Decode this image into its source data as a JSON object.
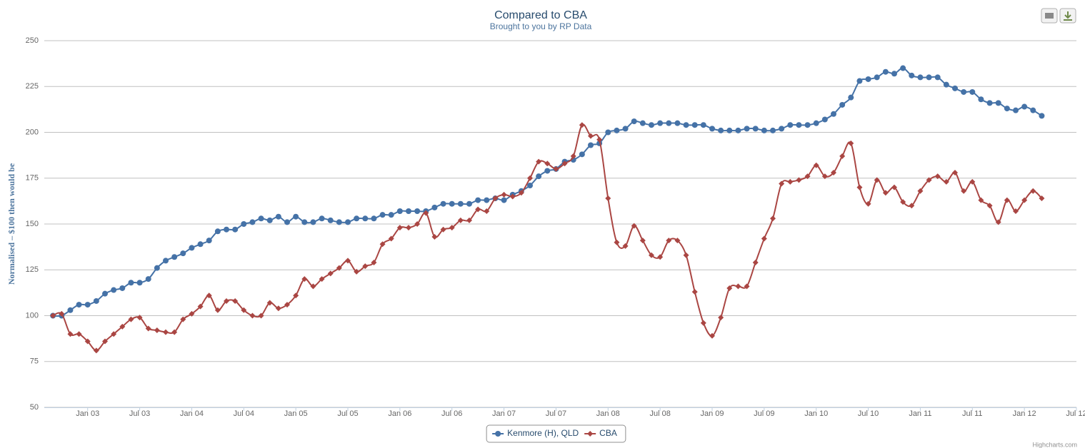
{
  "chart_data": {
    "type": "line",
    "title": "Compared to CBA",
    "subtitle": "Brought to you by RP Data",
    "y_label": "Normalised – $100 then would be",
    "credits": "Highcharts.com",
    "grid": true,
    "legend": "bottom",
    "xlim": [
      "2002-08",
      "2012-07"
    ],
    "xticks": [
      {
        "value": "2003-01",
        "label": "Jan 03"
      },
      {
        "value": "2003-07",
        "label": "Jul 03"
      },
      {
        "value": "2004-01",
        "label": "Jan 04"
      },
      {
        "value": "2004-07",
        "label": "Jul 04"
      },
      {
        "value": "2005-01",
        "label": "Jan 05"
      },
      {
        "value": "2005-07",
        "label": "Jul 05"
      },
      {
        "value": "2006-01",
        "label": "Jan 06"
      },
      {
        "value": "2006-07",
        "label": "Jul 06"
      },
      {
        "value": "2007-01",
        "label": "Jan 07"
      },
      {
        "value": "2007-07",
        "label": "Jul 07"
      },
      {
        "value": "2008-01",
        "label": "Jan 08"
      },
      {
        "value": "2008-07",
        "label": "Jul 08"
      },
      {
        "value": "2009-01",
        "label": "Jan 09"
      },
      {
        "value": "2009-07",
        "label": "Jul 09"
      },
      {
        "value": "2010-01",
        "label": "Jan 10"
      },
      {
        "value": "2010-07",
        "label": "Jul 10"
      },
      {
        "value": "2011-01",
        "label": "Jan 11"
      },
      {
        "value": "2011-07",
        "label": "Jul 11"
      },
      {
        "value": "2012-01",
        "label": "Jan 12"
      },
      {
        "value": "2012-07",
        "label": "Jul 12"
      }
    ],
    "ylim": [
      50,
      250
    ],
    "yticks": [
      50,
      75,
      100,
      125,
      150,
      175,
      200,
      225,
      250
    ],
    "x": [
      "2002-09",
      "2002-10",
      "2002-11",
      "2002-12",
      "2003-01",
      "2003-02",
      "2003-03",
      "2003-04",
      "2003-05",
      "2003-06",
      "2003-07",
      "2003-08",
      "2003-09",
      "2003-10",
      "2003-11",
      "2003-12",
      "2004-01",
      "2004-02",
      "2004-03",
      "2004-04",
      "2004-05",
      "2004-06",
      "2004-07",
      "2004-08",
      "2004-09",
      "2004-10",
      "2004-11",
      "2004-12",
      "2005-01",
      "2005-02",
      "2005-03",
      "2005-04",
      "2005-05",
      "2005-06",
      "2005-07",
      "2005-08",
      "2005-09",
      "2005-10",
      "2005-11",
      "2005-12",
      "2006-01",
      "2006-02",
      "2006-03",
      "2006-04",
      "2006-05",
      "2006-06",
      "2006-07",
      "2006-08",
      "2006-09",
      "2006-10",
      "2006-11",
      "2006-12",
      "2007-01",
      "2007-02",
      "2007-03",
      "2007-04",
      "2007-05",
      "2007-06",
      "2007-07",
      "2007-08",
      "2007-09",
      "2007-10",
      "2007-11",
      "2007-12",
      "2008-01",
      "2008-02",
      "2008-03",
      "2008-04",
      "2008-05",
      "2008-06",
      "2008-07",
      "2008-08",
      "2008-09",
      "2008-10",
      "2008-11",
      "2008-12",
      "2009-01",
      "2009-02",
      "2009-03",
      "2009-04",
      "2009-05",
      "2009-06",
      "2009-07",
      "2009-08",
      "2009-09",
      "2009-10",
      "2009-11",
      "2009-12",
      "2010-01",
      "2010-02",
      "2010-03",
      "2010-04",
      "2010-05",
      "2010-06",
      "2010-07",
      "2010-08",
      "2010-09",
      "2010-10",
      "2010-11",
      "2010-12",
      "2011-01",
      "2011-02",
      "2011-03",
      "2011-04",
      "2011-05",
      "2011-06",
      "2011-07",
      "2011-08",
      "2011-09",
      "2011-10",
      "2011-11",
      "2011-12",
      "2012-01",
      "2012-02",
      "2012-03"
    ],
    "series": [
      {
        "name": "Kenmore (H), QLD",
        "color": "#4572A7",
        "marker": "circle",
        "values": [
          100,
          100,
          103,
          106,
          106,
          108,
          112,
          114,
          115,
          118,
          118,
          120,
          126,
          130,
          132,
          134,
          137,
          139,
          141,
          146,
          147,
          147,
          150,
          151,
          153,
          152,
          154,
          151,
          154,
          151,
          151,
          153,
          152,
          151,
          151,
          153,
          153,
          153,
          155,
          155,
          157,
          157,
          157,
          157,
          159,
          161,
          161,
          161,
          161,
          163,
          163,
          164,
          163,
          166,
          168,
          171,
          176,
          179,
          180,
          184,
          185,
          188,
          193,
          194,
          200,
          201,
          202,
          206,
          205,
          204,
          205,
          205,
          205,
          204,
          204,
          204,
          202,
          201,
          201,
          201,
          202,
          202,
          201,
          201,
          202,
          204,
          204,
          204,
          205,
          207,
          210,
          215,
          219,
          228,
          229,
          230,
          233,
          232,
          235,
          231,
          230,
          230,
          230,
          226,
          224,
          222,
          222,
          218,
          216,
          216,
          213,
          212,
          214,
          212,
          209
        ]
      },
      {
        "name": "CBA",
        "color": "#AA4643",
        "marker": "diamond",
        "values": [
          100,
          101,
          90,
          90,
          86,
          81,
          86,
          90,
          94,
          98,
          99,
          93,
          92,
          91,
          91,
          98,
          101,
          105,
          111,
          103,
          108,
          108,
          103,
          100,
          100,
          107,
          104,
          106,
          111,
          120,
          116,
          120,
          123,
          126,
          130,
          124,
          127,
          129,
          139,
          142,
          148,
          148,
          150,
          156,
          143,
          147,
          148,
          152,
          152,
          158,
          157,
          164,
          166,
          165,
          167,
          175,
          184,
          183,
          180,
          183,
          187,
          204,
          198,
          196,
          164,
          140,
          138,
          149,
          141,
          133,
          132,
          141,
          141,
          133,
          113,
          96,
          89,
          99,
          115,
          116,
          116,
          129,
          142,
          153,
          172,
          173,
          174,
          176,
          182,
          176,
          178,
          187,
          194,
          170,
          161,
          174,
          167,
          170,
          162,
          160,
          168,
          174,
          176,
          173,
          178,
          168,
          173,
          163,
          160,
          151,
          163,
          157,
          163,
          168,
          164
        ]
      }
    ]
  }
}
